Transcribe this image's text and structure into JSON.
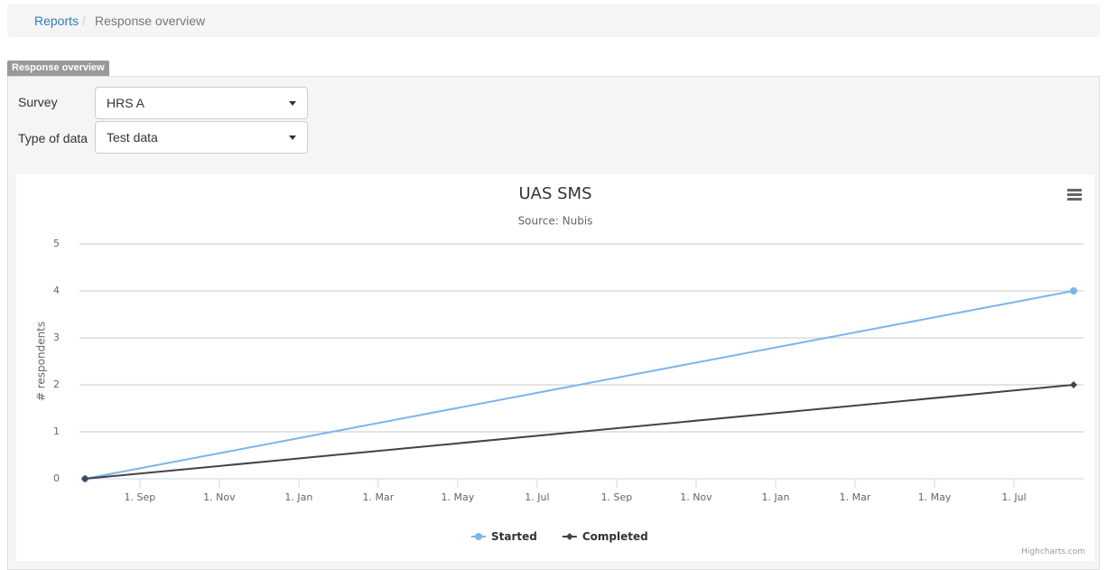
{
  "breadcrumb": {
    "items": [
      "Reports",
      "Response overview"
    ]
  },
  "panel": {
    "label": "Response overview"
  },
  "form": {
    "fields": [
      {
        "label": "Survey",
        "value": "HRS A"
      },
      {
        "label": "Type of data",
        "value": "Test data"
      }
    ]
  },
  "chart_data": {
    "type": "line",
    "title": "UAS SMS",
    "subtitle": "Source: Nubis",
    "y_label": "# respondents",
    "credit": "Highcharts.com",
    "x": [
      -1.38,
      23.5
    ],
    "xlim": [
      -1.52,
      23.75
    ],
    "xticks": [
      {
        "value": 0,
        "label": "1. Sep"
      },
      {
        "value": 2,
        "label": "1. Nov"
      },
      {
        "value": 4,
        "label": "1. Jan"
      },
      {
        "value": 6,
        "label": "1. Mar"
      },
      {
        "value": 8,
        "label": "1. May"
      },
      {
        "value": 10,
        "label": "1. Jul"
      },
      {
        "value": 12,
        "label": "1. Sep"
      },
      {
        "value": 14,
        "label": "1. Nov"
      },
      {
        "value": 16,
        "label": "1. Jan"
      },
      {
        "value": 18,
        "label": "1. Mar"
      },
      {
        "value": 20,
        "label": "1. May"
      },
      {
        "value": 22,
        "label": "1. Jul"
      }
    ],
    "ylim": [
      0,
      5
    ],
    "yticks": [
      0,
      1,
      2,
      3,
      4,
      5
    ],
    "grid": true,
    "series": [
      {
        "name": "Started",
        "color": "#7cb5ec",
        "marker": "circle",
        "values": [
          0,
          4
        ]
      },
      {
        "name": "Completed",
        "color": "#434348",
        "marker": "diamond",
        "values": [
          0,
          2
        ]
      }
    ]
  }
}
